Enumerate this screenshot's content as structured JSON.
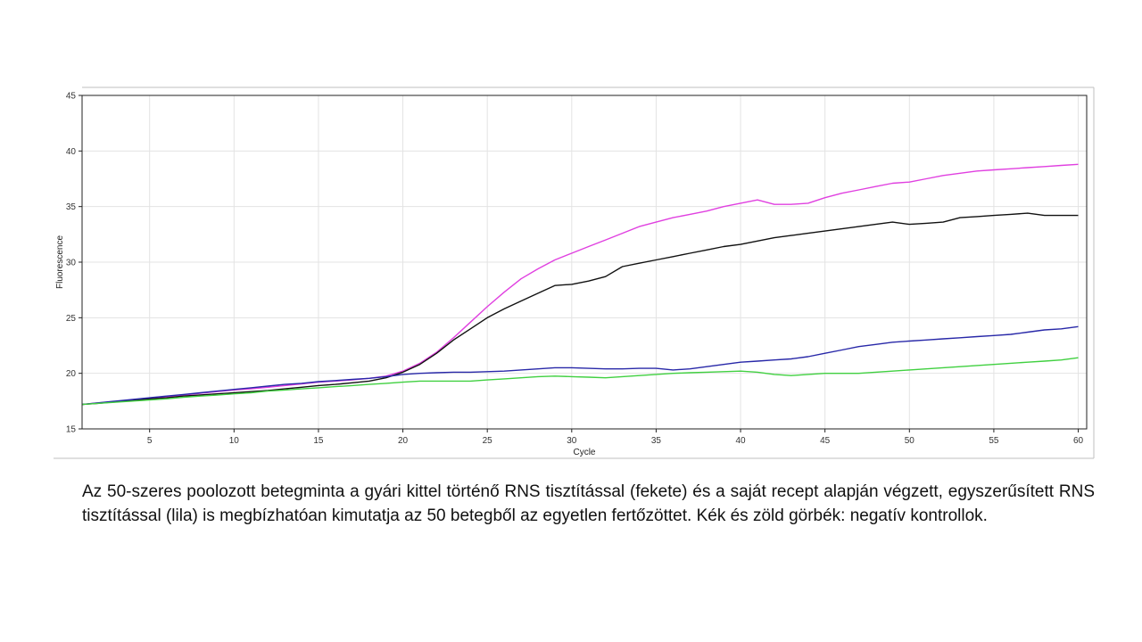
{
  "chart_data": {
    "type": "line",
    "xlabel": "Cycle",
    "ylabel": "Fluorescence",
    "xlim": [
      1,
      60.5
    ],
    "ylim": [
      15,
      45
    ],
    "x_ticks": [
      "5",
      "10",
      "15",
      "20",
      "25",
      "30",
      "35",
      "40",
      "45",
      "50",
      "55",
      "60"
    ],
    "y_ticks": [
      "15",
      "20",
      "25",
      "30",
      "35",
      "40",
      "45"
    ],
    "grid": true,
    "x": [
      1,
      2,
      3,
      4,
      5,
      6,
      7,
      8,
      9,
      10,
      11,
      12,
      13,
      14,
      15,
      16,
      17,
      18,
      19,
      20,
      21,
      22,
      23,
      24,
      25,
      26,
      27,
      28,
      29,
      30,
      31,
      32,
      33,
      34,
      35,
      36,
      37,
      38,
      39,
      40,
      41,
      42,
      43,
      44,
      45,
      46,
      47,
      48,
      49,
      50,
      51,
      52,
      53,
      54,
      55,
      56,
      57,
      58,
      59,
      60
    ],
    "series": [
      {
        "color": "#e040e0",
        "values": [
          17.2,
          17.35,
          17.45,
          17.6,
          17.75,
          17.9,
          18.05,
          18.2,
          18.35,
          18.5,
          18.6,
          18.75,
          18.9,
          19.05,
          19.2,
          19.3,
          19.4,
          19.55,
          19.75,
          20.2,
          20.9,
          21.9,
          23.2,
          24.6,
          26.0,
          27.3,
          28.5,
          29.4,
          30.2,
          30.8,
          31.4,
          32.0,
          32.6,
          33.2,
          33.6,
          34.0,
          34.3,
          34.6,
          35.0,
          35.3,
          35.6,
          35.2,
          35.2,
          35.3,
          35.8,
          36.2,
          36.5,
          36.8,
          37.1,
          37.2,
          37.5,
          37.8,
          38.0,
          38.2,
          38.3,
          38.4,
          38.5,
          38.6,
          38.7,
          38.8
        ]
      },
      {
        "color": "#111111",
        "values": [
          17.2,
          17.3,
          17.45,
          17.55,
          17.7,
          17.8,
          17.95,
          18.05,
          18.15,
          18.25,
          18.35,
          18.45,
          18.6,
          18.75,
          18.9,
          19.0,
          19.15,
          19.3,
          19.6,
          20.1,
          20.8,
          21.8,
          23.0,
          24.0,
          25.0,
          25.8,
          26.5,
          27.2,
          27.9,
          28.0,
          28.3,
          28.7,
          29.6,
          29.9,
          30.2,
          30.5,
          30.8,
          31.1,
          31.4,
          31.6,
          31.9,
          32.2,
          32.4,
          32.6,
          32.8,
          33.0,
          33.2,
          33.4,
          33.6,
          33.4,
          33.5,
          33.6,
          34.0,
          34.1,
          34.2,
          34.3,
          34.4,
          34.2,
          34.2,
          34.2
        ]
      },
      {
        "color": "#2828a8",
        "values": [
          17.2,
          17.35,
          17.5,
          17.65,
          17.8,
          17.95,
          18.1,
          18.25,
          18.4,
          18.55,
          18.7,
          18.85,
          19.0,
          19.1,
          19.25,
          19.35,
          19.45,
          19.55,
          19.7,
          19.9,
          20.0,
          20.05,
          20.1,
          20.1,
          20.15,
          20.2,
          20.3,
          20.4,
          20.5,
          20.5,
          20.45,
          20.4,
          20.4,
          20.45,
          20.45,
          20.3,
          20.4,
          20.6,
          20.8,
          21.0,
          21.1,
          21.2,
          21.3,
          21.5,
          21.8,
          22.1,
          22.4,
          22.6,
          22.8,
          22.9,
          23.0,
          23.1,
          23.2,
          23.3,
          23.4,
          23.5,
          23.7,
          23.9,
          24.0,
          24.2
        ]
      },
      {
        "color": "#40d040",
        "values": [
          17.2,
          17.3,
          17.4,
          17.5,
          17.6,
          17.7,
          17.85,
          17.95,
          18.05,
          18.15,
          18.25,
          18.4,
          18.5,
          18.6,
          18.7,
          18.8,
          18.9,
          19.0,
          19.1,
          19.2,
          19.3,
          19.3,
          19.3,
          19.3,
          19.4,
          19.5,
          19.6,
          19.7,
          19.75,
          19.7,
          19.65,
          19.6,
          19.7,
          19.8,
          19.9,
          20.0,
          20.05,
          20.1,
          20.15,
          20.2,
          20.1,
          19.9,
          19.8,
          19.9,
          20.0,
          20.0,
          20.0,
          20.1,
          20.2,
          20.3,
          20.4,
          20.5,
          20.6,
          20.7,
          20.8,
          20.9,
          21.0,
          21.1,
          21.2,
          21.4
        ]
      }
    ]
  },
  "caption": "Az 50-szeres poolozott betegminta a gyári kittel történő RNS tisztítással (fekete) és a saját recept alapján végzett, egyszerűsített RNS tisztítással (lila) is megbízhatóan kimutatja az 50 betegből az egyetlen fertőzöttet. Kék és zöld görbék: negatív kontrollok."
}
